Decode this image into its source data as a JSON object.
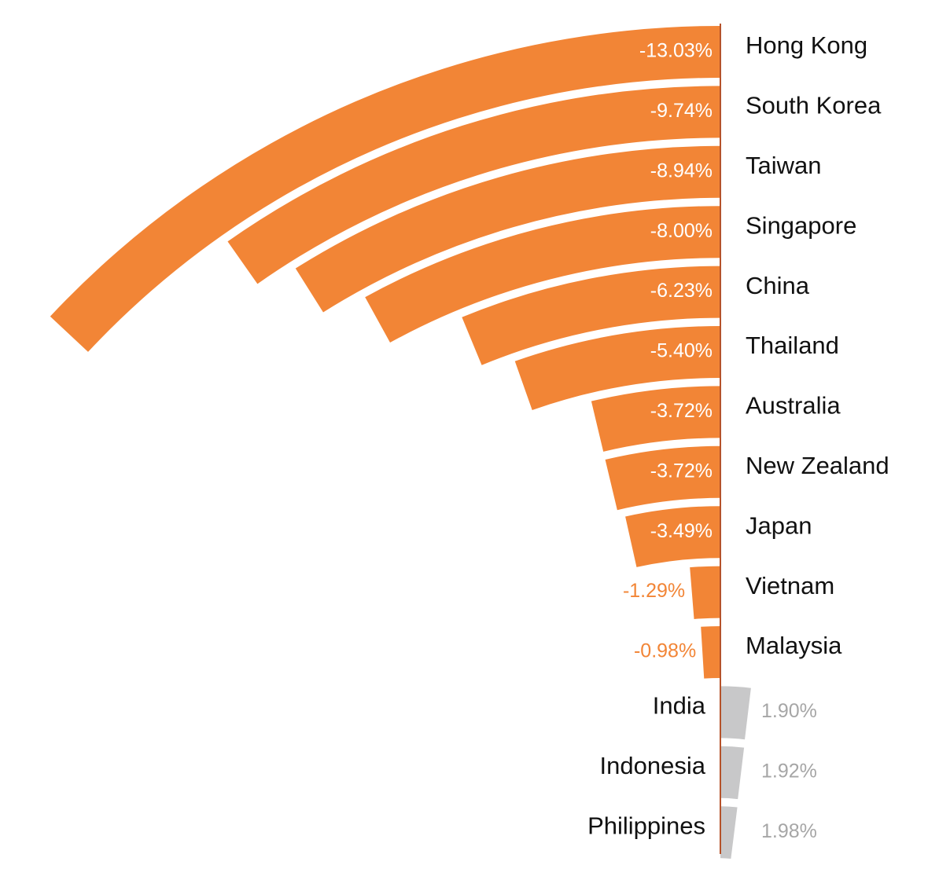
{
  "chart_data": {
    "type": "radial-bar",
    "categories": [
      "Hong Kong",
      "South Korea",
      "Taiwan",
      "Singapore",
      "China",
      "Thailand",
      "Australia",
      "New Zealand",
      "Japan",
      "Vietnam",
      "Malaysia",
      "India",
      "Indonesia",
      "Philippines"
    ],
    "values": [
      -13.03,
      -9.74,
      -8.94,
      -8.0,
      -6.23,
      -5.4,
      -3.72,
      -3.72,
      -3.49,
      -1.29,
      -0.98,
      1.9,
      1.92,
      1.98
    ],
    "value_labels": [
      "-13.03%",
      "-9.74%",
      "-8.94%",
      "-8.00%",
      "-6.23%",
      "-5.40%",
      "-3.72%",
      "-3.72%",
      "-3.49%",
      "-1.29%",
      "-0.98%",
      "1.90%",
      "1.92%",
      "1.98%"
    ],
    "negative_color": "#f28536",
    "positive_color": "#c8c8c9"
  }
}
